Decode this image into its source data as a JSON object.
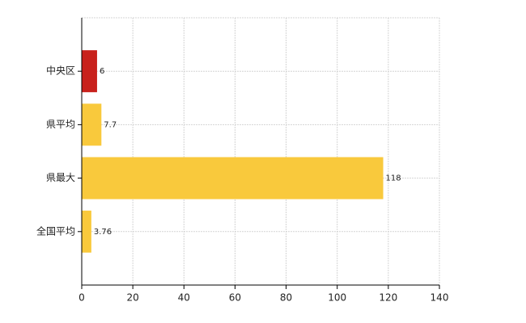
{
  "chart_data": {
    "type": "barh",
    "categories": [
      "中央区",
      "県平均",
      "県最大",
      "全国平均"
    ],
    "values": [
      6,
      7.7,
      118,
      3.76
    ],
    "colors": [
      "#c8211c",
      "#f9c93c",
      "#f9c93c",
      "#f9c93c"
    ],
    "xlim": [
      0,
      140
    ],
    "xticks": [
      0,
      20,
      40,
      60,
      80,
      100,
      120,
      140
    ],
    "grid": true
  }
}
